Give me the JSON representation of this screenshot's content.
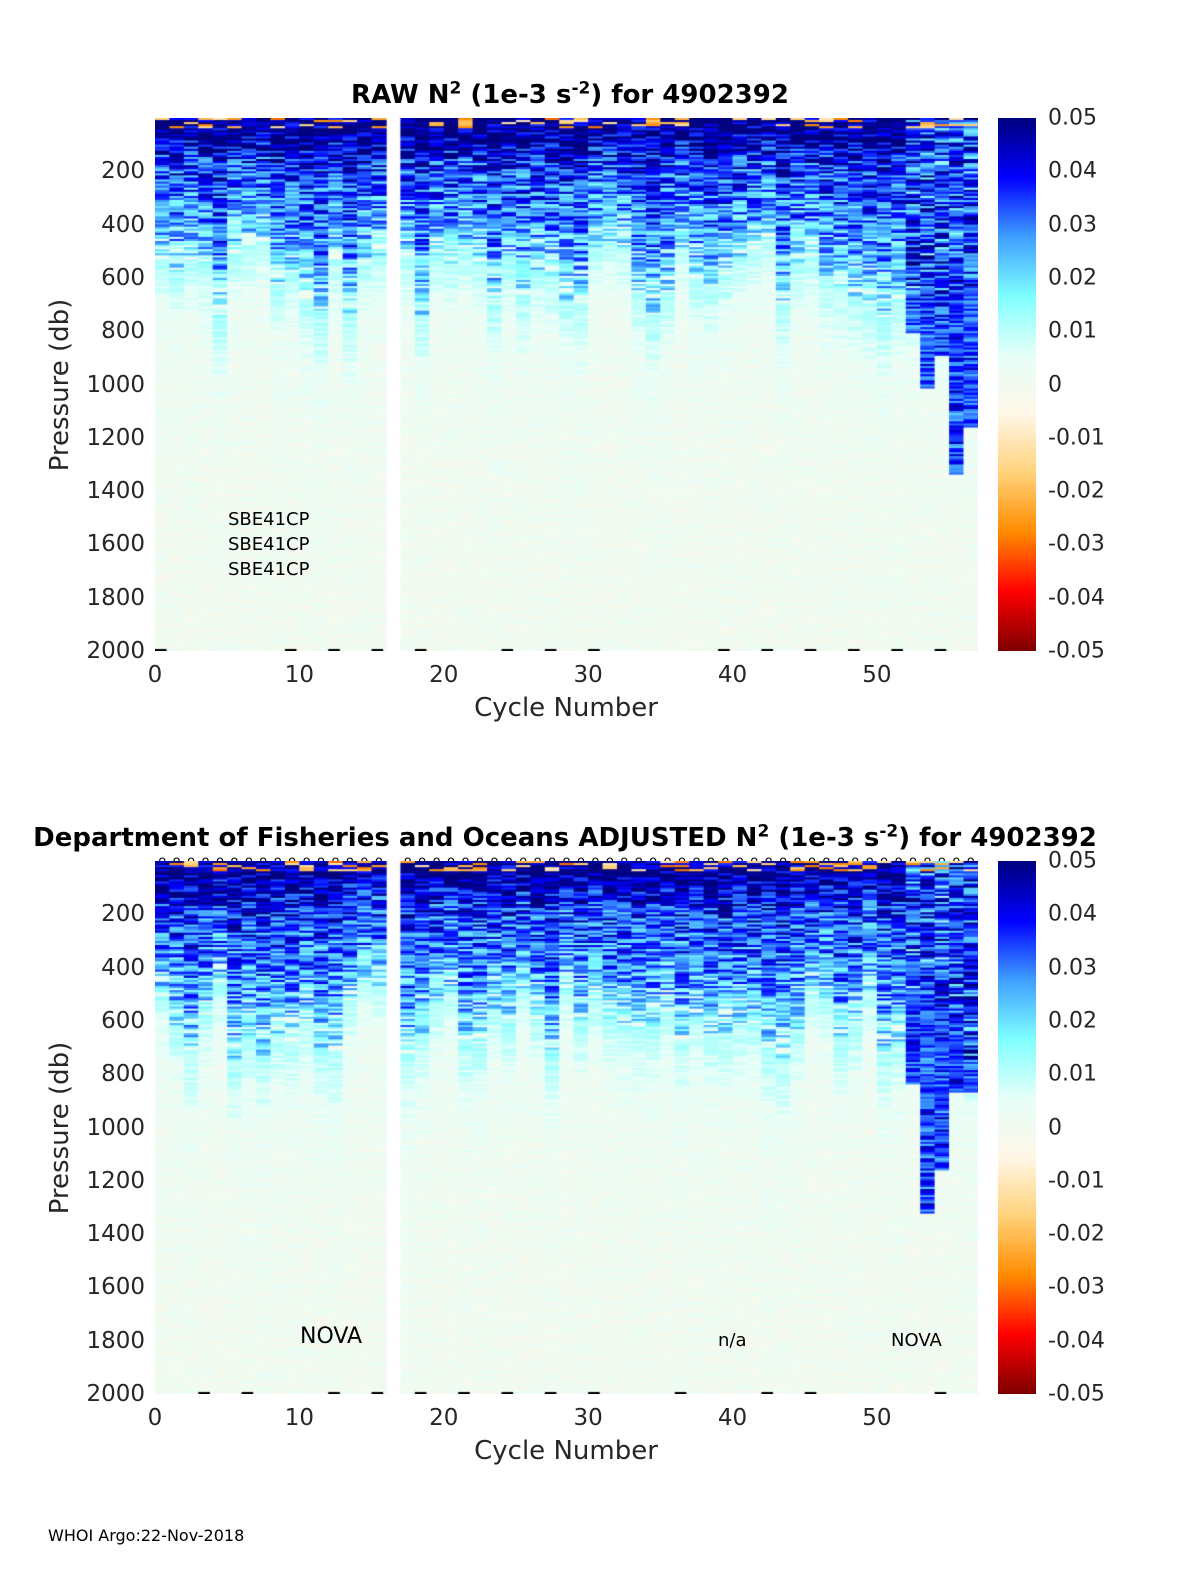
{
  "footer": "WHOI Argo:22-Nov-2018",
  "colorbar": {
    "ticks": [
      "0.05",
      "0.04",
      "0.03",
      "0.02",
      "0.01",
      "0",
      "-0.01",
      "-0.02",
      "-0.03",
      "-0.04",
      "-0.05"
    ],
    "range": [
      -0.05,
      0.05
    ],
    "colormap": [
      "#7f0000",
      "#ff0000",
      "#ff8c00",
      "#ffd27a",
      "#fff7e8",
      "#e6fff8",
      "#7fffff",
      "#3f9fff",
      "#0000ff",
      "#00007f"
    ]
  },
  "panels": [
    {
      "title_main": "RAW N",
      "title_sup1": "2",
      "title_mid": " (1e-3 s",
      "title_sup2": "-2",
      "title_end": ") for 4902392",
      "xlabel": "Cycle Number",
      "ylabel": "Pressure (db)",
      "annotations": [
        "SBE41CP",
        "SBE41CP",
        "SBE41CP"
      ],
      "qc_marker": ""
    },
    {
      "title_main": "Department of Fisheries and Oceans  ADJUSTED N",
      "title_sup1": "2",
      "title_mid": " (1e-3 s",
      "title_sup2": "-2",
      "title_end": ") for 4902392",
      "xlabel": "Cycle Number",
      "ylabel": "Pressure (db)",
      "annotations": [
        "NOVA",
        "n/a",
        "NOVA"
      ],
      "qc_marker": "o"
    }
  ],
  "chart_data": [
    {
      "type": "heatmap",
      "title": "RAW N2 (1e-3 s-2) for 4902392",
      "xlabel": "Cycle Number",
      "ylabel": "Pressure (db)",
      "xlim": [
        0,
        57
      ],
      "ylim": [
        2000,
        0
      ],
      "yreversed": true,
      "xticks": [
        0,
        10,
        20,
        30,
        40,
        50
      ],
      "yticks": [
        200,
        400,
        600,
        800,
        1000,
        1200,
        1400,
        1600,
        1800,
        2000
      ],
      "cycles": [
        1,
        57
      ],
      "missing_cycles": [
        17
      ],
      "colorbar_range": [
        -0.05,
        0.05
      ],
      "deep_stratified_cycles": [
        53,
        54,
        55,
        56,
        57
      ],
      "mixed_layer_depth_approx_db": 600,
      "value_profile": [
        {
          "pressure": 50,
          "value": 0.05
        },
        {
          "pressure": 200,
          "value": 0.035
        },
        {
          "pressure": 400,
          "value": 0.028
        },
        {
          "pressure": 600,
          "value": 0.012
        },
        {
          "pressure": 800,
          "value": 0.004
        },
        {
          "pressure": 1000,
          "value": 0.002
        },
        {
          "pressure": 1500,
          "value": 0.001
        },
        {
          "pressure": 2000,
          "value": 0.0005
        }
      ]
    },
    {
      "type": "heatmap",
      "title": "Department of Fisheries and Oceans  ADJUSTED N2 (1e-3 s-2) for 4902392",
      "xlabel": "Cycle Number",
      "ylabel": "Pressure (db)",
      "xlim": [
        0,
        57
      ],
      "ylim": [
        2000,
        0
      ],
      "yreversed": true,
      "xticks": [
        0,
        10,
        20,
        30,
        40,
        50
      ],
      "yticks": [
        200,
        400,
        600,
        800,
        1000,
        1200,
        1400,
        1600,
        1800,
        2000
      ],
      "cycles": [
        1,
        57
      ],
      "missing_cycles": [
        17
      ],
      "colorbar_range": [
        -0.05,
        0.05
      ],
      "deep_stratified_cycles": [
        53,
        54,
        55,
        56,
        57
      ],
      "mixed_layer_depth_approx_db": 600,
      "value_profile": [
        {
          "pressure": 50,
          "value": 0.05
        },
        {
          "pressure": 200,
          "value": 0.035
        },
        {
          "pressure": 400,
          "value": 0.028
        },
        {
          "pressure": 600,
          "value": 0.012
        },
        {
          "pressure": 800,
          "value": 0.004
        },
        {
          "pressure": 1000,
          "value": 0.002
        },
        {
          "pressure": 1500,
          "value": 0.001
        },
        {
          "pressure": 2000,
          "value": 0.0005
        }
      ]
    }
  ]
}
